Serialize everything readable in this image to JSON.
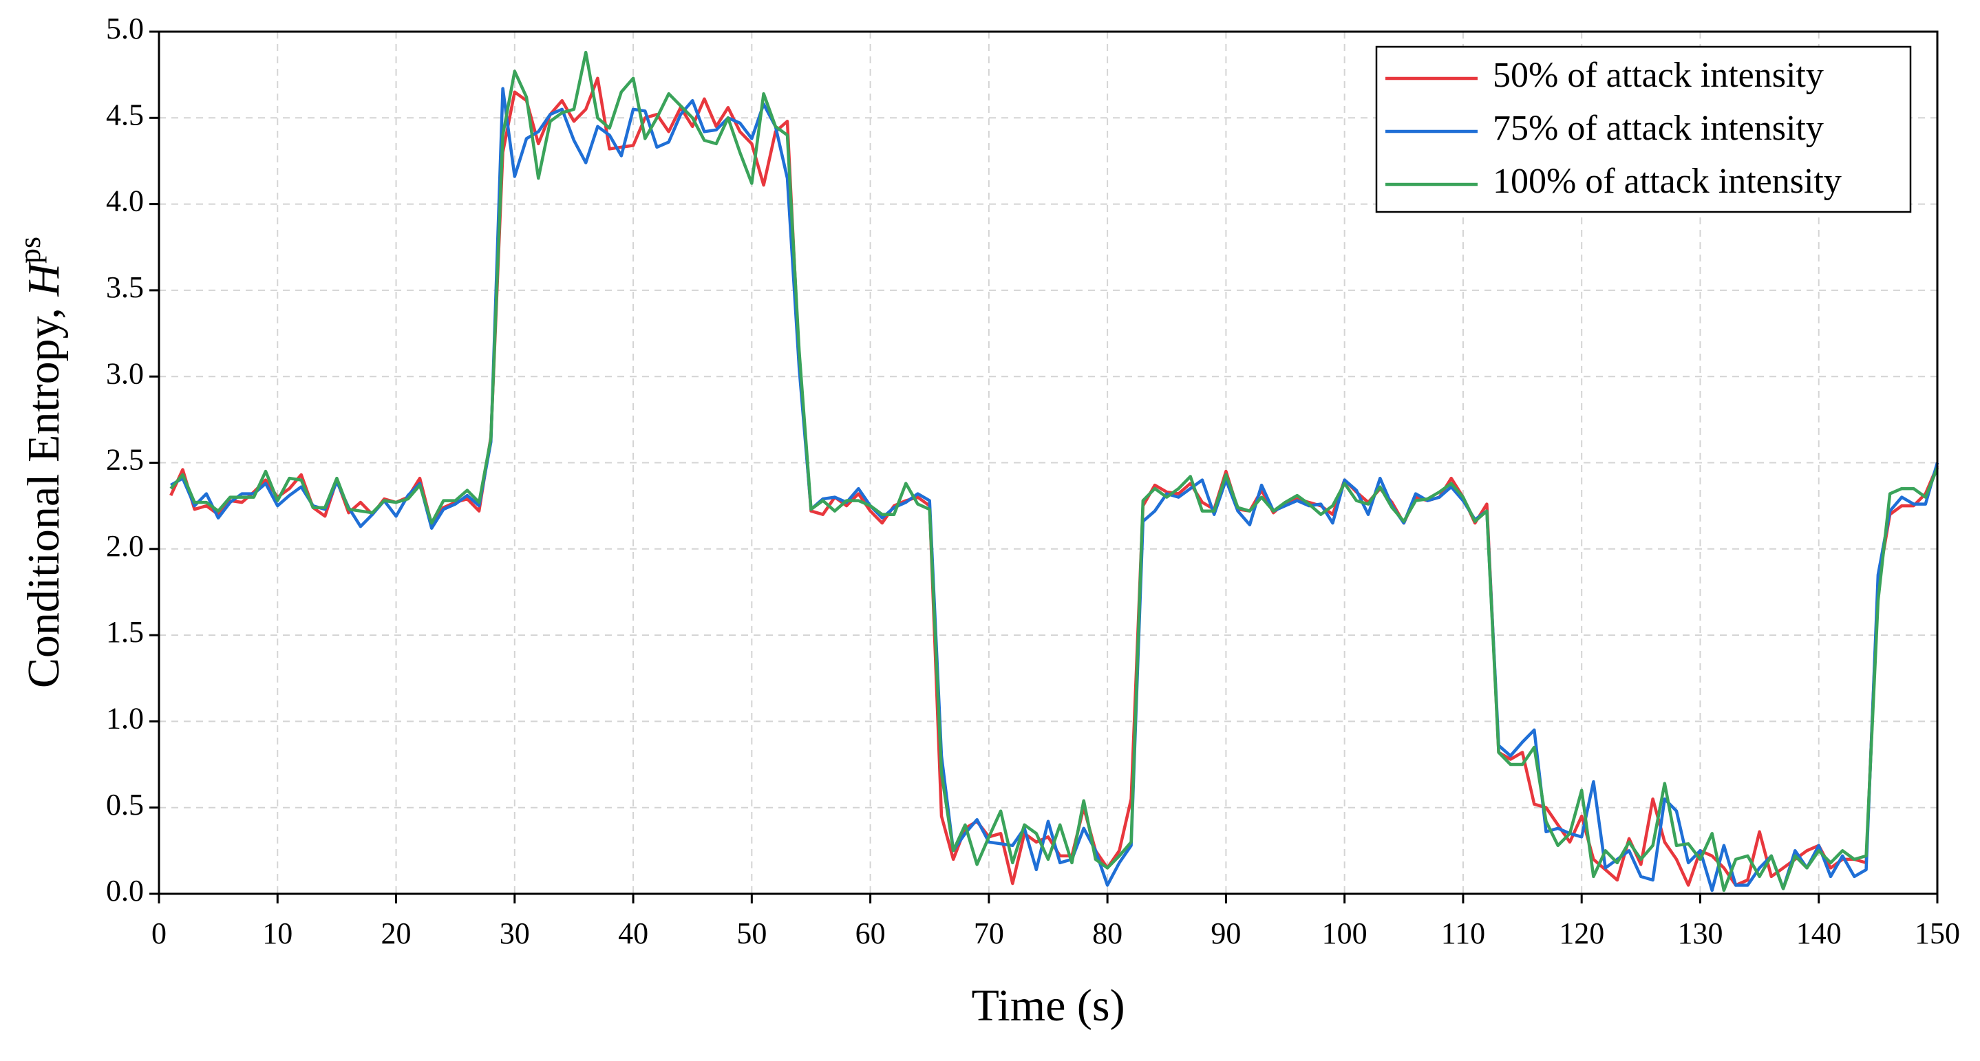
{
  "chart_data": {
    "type": "line",
    "xlabel": "Time (s)",
    "ylabel": {
      "text": "Conditional Entropy, ",
      "symbol": "H",
      "superscript": "ps"
    },
    "x": [
      1,
      2,
      3,
      4,
      5,
      6,
      7,
      8,
      9,
      10,
      11,
      12,
      13,
      14,
      15,
      16,
      17,
      18,
      19,
      20,
      21,
      22,
      23,
      24,
      25,
      26,
      27,
      28,
      29,
      30,
      31,
      32,
      33,
      34,
      35,
      36,
      37,
      38,
      39,
      40,
      41,
      42,
      43,
      44,
      45,
      46,
      47,
      48,
      49,
      50,
      51,
      52,
      53,
      54,
      55,
      56,
      57,
      58,
      59,
      60,
      61,
      62,
      63,
      64,
      65,
      66,
      67,
      68,
      69,
      70,
      71,
      72,
      73,
      74,
      75,
      76,
      77,
      78,
      79,
      80,
      81,
      82,
      83,
      84,
      85,
      86,
      87,
      88,
      89,
      90,
      91,
      92,
      93,
      94,
      95,
      96,
      97,
      98,
      99,
      100,
      101,
      102,
      103,
      104,
      105,
      106,
      107,
      108,
      109,
      110,
      111,
      112,
      113,
      114,
      115,
      116,
      117,
      118,
      119,
      120,
      121,
      122,
      123,
      124,
      125,
      126,
      127,
      128,
      129,
      130,
      131,
      132,
      133,
      134,
      135,
      136,
      137,
      138,
      139,
      140,
      141,
      142,
      143,
      144,
      145,
      146,
      147,
      148,
      149,
      150
    ],
    "series": [
      {
        "name": "50% of attack intensity",
        "color": "#e8373d",
        "values": [
          2.31,
          2.46,
          2.23,
          2.25,
          2.2,
          2.28,
          2.27,
          2.33,
          2.4,
          2.3,
          2.35,
          2.43,
          2.24,
          2.19,
          2.4,
          2.21,
          2.27,
          2.2,
          2.29,
          2.27,
          2.3,
          2.41,
          2.14,
          2.24,
          2.27,
          2.29,
          2.22,
          2.65,
          4.3,
          4.65,
          4.6,
          4.35,
          4.52,
          4.6,
          4.48,
          4.55,
          4.73,
          4.32,
          4.33,
          4.34,
          4.5,
          4.52,
          4.42,
          4.56,
          4.45,
          4.61,
          4.45,
          4.56,
          4.42,
          4.35,
          4.11,
          4.42,
          4.48,
          3.1,
          2.22,
          2.2,
          2.3,
          2.25,
          2.32,
          2.22,
          2.15,
          2.25,
          2.28,
          2.3,
          2.25,
          0.45,
          0.2,
          0.38,
          0.42,
          0.33,
          0.35,
          0.06,
          0.35,
          0.3,
          0.33,
          0.22,
          0.22,
          0.5,
          0.25,
          0.15,
          0.25,
          0.55,
          2.25,
          2.37,
          2.33,
          2.32,
          2.38,
          2.27,
          2.23,
          2.45,
          2.23,
          2.22,
          2.34,
          2.21,
          2.27,
          2.29,
          2.27,
          2.25,
          2.2,
          2.4,
          2.33,
          2.27,
          2.35,
          2.27,
          2.15,
          2.3,
          2.28,
          2.3,
          2.41,
          2.3,
          2.15,
          2.26,
          0.82,
          0.78,
          0.82,
          0.52,
          0.5,
          0.4,
          0.3,
          0.45,
          0.2,
          0.14,
          0.08,
          0.32,
          0.17,
          0.55,
          0.3,
          0.2,
          0.05,
          0.25,
          0.22,
          0.15,
          0.05,
          0.08,
          0.36,
          0.1,
          0.15,
          0.2,
          0.25,
          0.28,
          0.15,
          0.2,
          0.2,
          0.18,
          1.8,
          2.2,
          2.25,
          2.25,
          2.32,
          2.48
        ]
      },
      {
        "name": "75% of attack intensity",
        "color": "#1f6fd6",
        "values": [
          2.37,
          2.41,
          2.25,
          2.32,
          2.18,
          2.27,
          2.32,
          2.32,
          2.38,
          2.25,
          2.31,
          2.36,
          2.25,
          2.23,
          2.39,
          2.24,
          2.13,
          2.2,
          2.28,
          2.19,
          2.31,
          2.38,
          2.12,
          2.23,
          2.26,
          2.31,
          2.25,
          2.62,
          4.67,
          4.16,
          4.38,
          4.42,
          4.52,
          4.55,
          4.37,
          4.24,
          4.45,
          4.4,
          4.28,
          4.55,
          4.54,
          4.33,
          4.36,
          4.52,
          4.6,
          4.42,
          4.43,
          4.5,
          4.47,
          4.38,
          4.58,
          4.45,
          4.15,
          3.05,
          2.23,
          2.29,
          2.3,
          2.27,
          2.35,
          2.25,
          2.18,
          2.24,
          2.27,
          2.32,
          2.28,
          0.8,
          0.25,
          0.35,
          0.43,
          0.3,
          0.29,
          0.28,
          0.38,
          0.14,
          0.42,
          0.18,
          0.2,
          0.38,
          0.25,
          0.05,
          0.18,
          0.28,
          2.16,
          2.22,
          2.32,
          2.3,
          2.35,
          2.4,
          2.2,
          2.4,
          2.22,
          2.14,
          2.37,
          2.22,
          2.25,
          2.28,
          2.25,
          2.26,
          2.15,
          2.4,
          2.34,
          2.2,
          2.41,
          2.25,
          2.15,
          2.32,
          2.28,
          2.3,
          2.36,
          2.28,
          2.17,
          2.22,
          0.86,
          0.8,
          0.88,
          0.95,
          0.36,
          0.38,
          0.35,
          0.33,
          0.65,
          0.15,
          0.2,
          0.25,
          0.1,
          0.08,
          0.55,
          0.48,
          0.18,
          0.25,
          0.02,
          0.28,
          0.05,
          0.05,
          0.15,
          0.22,
          0.03,
          0.25,
          0.15,
          0.28,
          0.1,
          0.22,
          0.1,
          0.14,
          1.85,
          2.22,
          2.3,
          2.26,
          2.26,
          2.5
        ]
      },
      {
        "name": "100% of attack intensity",
        "color": "#3aa35a",
        "values": [
          2.35,
          2.43,
          2.27,
          2.27,
          2.22,
          2.3,
          2.3,
          2.3,
          2.45,
          2.28,
          2.41,
          2.4,
          2.24,
          2.24,
          2.41,
          2.23,
          2.22,
          2.21,
          2.28,
          2.27,
          2.29,
          2.37,
          2.15,
          2.28,
          2.28,
          2.34,
          2.27,
          2.64,
          4.4,
          4.77,
          4.62,
          4.15,
          4.48,
          4.53,
          4.55,
          4.88,
          4.5,
          4.44,
          4.65,
          4.73,
          4.38,
          4.5,
          4.64,
          4.57,
          4.5,
          4.37,
          4.35,
          4.5,
          4.3,
          4.12,
          4.64,
          4.45,
          4.4,
          3.15,
          2.23,
          2.28,
          2.22,
          2.28,
          2.28,
          2.25,
          2.2,
          2.2,
          2.38,
          2.26,
          2.23,
          0.7,
          0.25,
          0.4,
          0.17,
          0.33,
          0.48,
          0.18,
          0.4,
          0.35,
          0.2,
          0.4,
          0.18,
          0.54,
          0.2,
          0.15,
          0.22,
          0.3,
          2.28,
          2.35,
          2.3,
          2.35,
          2.42,
          2.22,
          2.22,
          2.43,
          2.24,
          2.22,
          2.3,
          2.22,
          2.27,
          2.31,
          2.26,
          2.2,
          2.25,
          2.38,
          2.28,
          2.26,
          2.36,
          2.24,
          2.16,
          2.28,
          2.29,
          2.33,
          2.38,
          2.3,
          2.16,
          2.22,
          0.82,
          0.75,
          0.75,
          0.85,
          0.42,
          0.28,
          0.35,
          0.6,
          0.1,
          0.25,
          0.18,
          0.3,
          0.2,
          0.28,
          0.64,
          0.28,
          0.29,
          0.2,
          0.35,
          0.02,
          0.2,
          0.22,
          0.1,
          0.22,
          0.03,
          0.22,
          0.15,
          0.25,
          0.18,
          0.25,
          0.2,
          0.22,
          1.7,
          2.32,
          2.35,
          2.35,
          2.3,
          2.47
        ]
      }
    ],
    "xlim": [
      0,
      150
    ],
    "xticks": [
      0,
      10,
      20,
      30,
      40,
      50,
      60,
      70,
      80,
      90,
      100,
      110,
      120,
      130,
      140,
      150
    ],
    "ylim": [
      0,
      5
    ],
    "yticks": [
      {
        "value": 0,
        "label": "0.0"
      },
      0.5,
      {
        "value": 1,
        "label": "1.0"
      },
      1.5,
      {
        "value": 2,
        "label": "2.0"
      },
      2.5,
      {
        "value": 3,
        "label": "3.0"
      },
      3.5,
      {
        "value": 4,
        "label": "4.0"
      },
      4.5,
      {
        "value": 5,
        "label": "5.0"
      }
    ],
    "grid": true,
    "legend": "upper right"
  }
}
